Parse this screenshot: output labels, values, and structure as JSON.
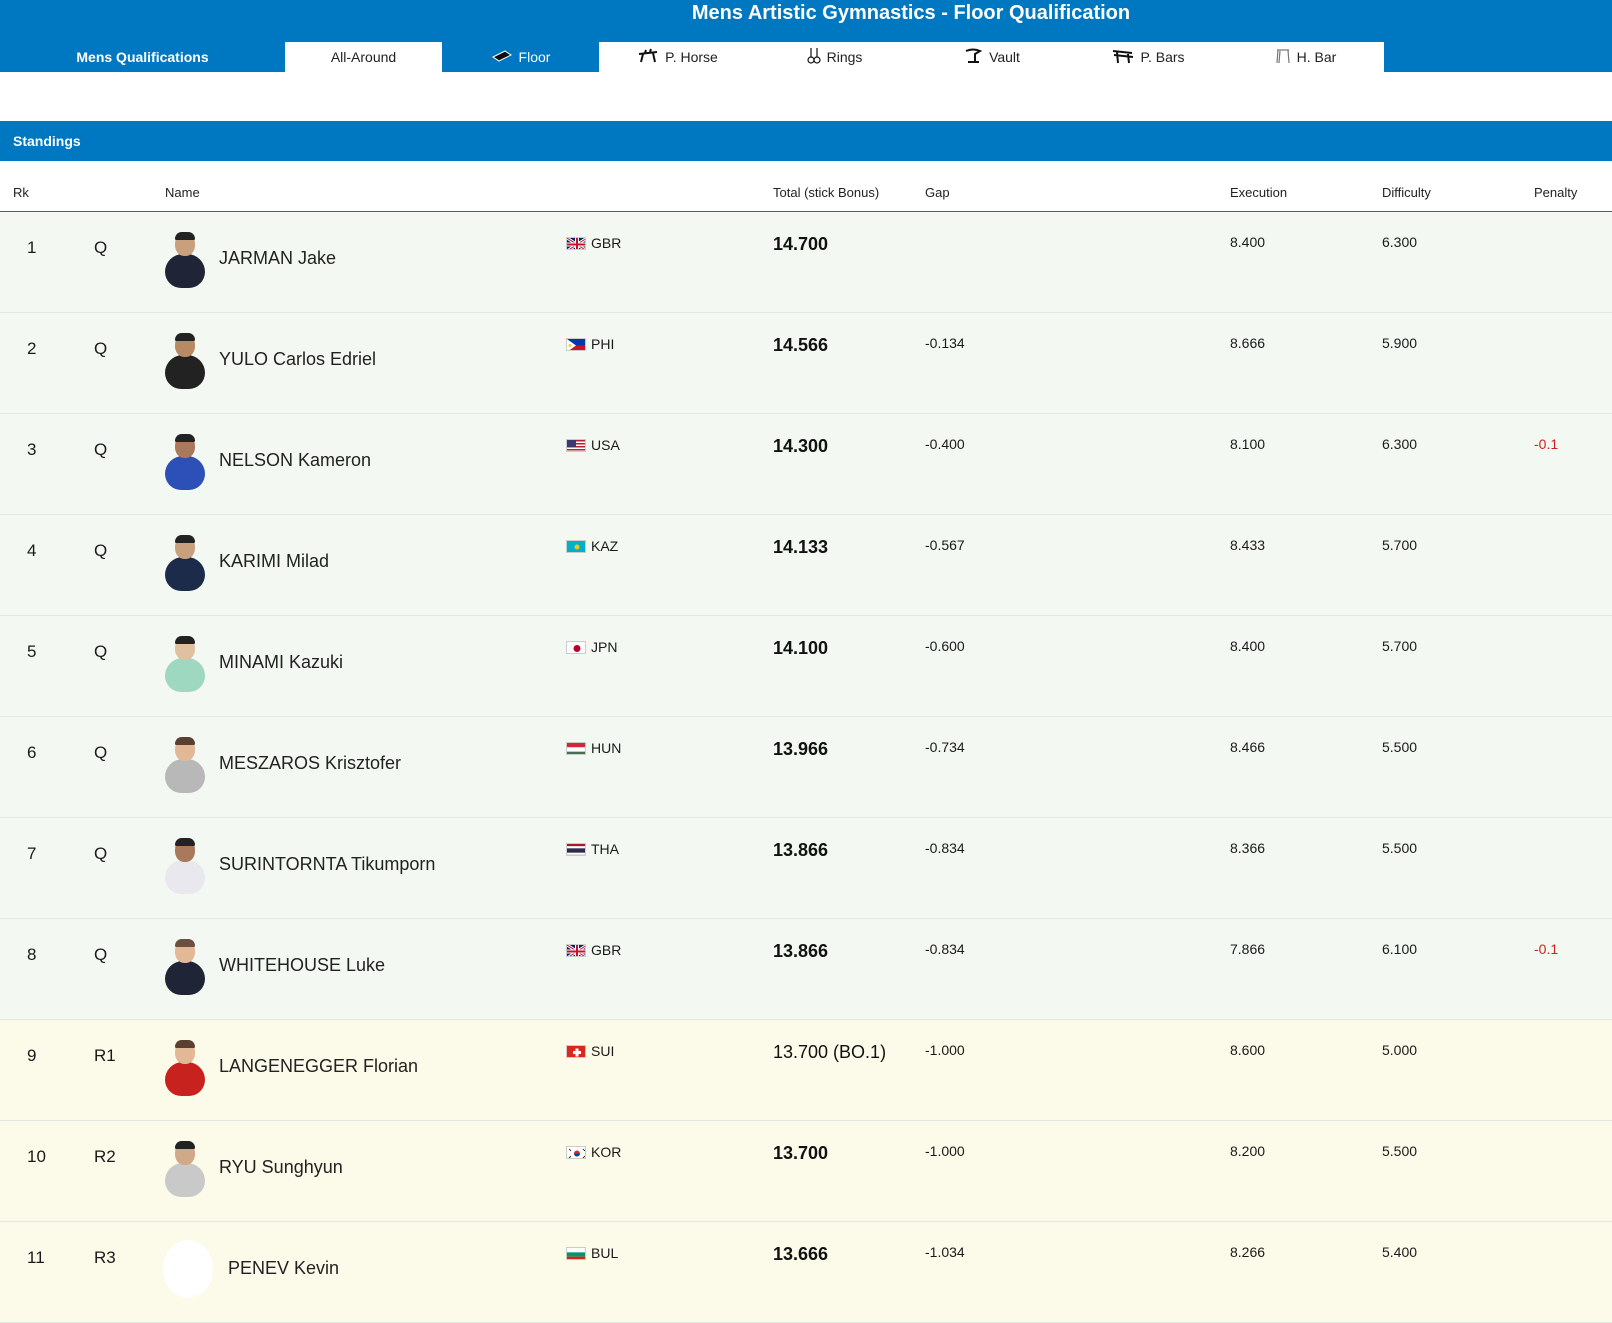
{
  "page_title": "Mens Artistic Gymnastics - Floor Qualification",
  "tabs": {
    "mens": "Mens Qualifications",
    "all_around": "All-Around",
    "floor": "Floor",
    "pommel": "P. Horse",
    "rings": "Rings",
    "vault": "Vault",
    "pbars": "P. Bars",
    "hbar": "H. Bar"
  },
  "section_title": "Standings",
  "columns": {
    "rk": "Rk",
    "name": "Name",
    "total": "Total (stick Bonus)",
    "gap": "Gap",
    "execution": "Execution",
    "difficulty": "Difficulty",
    "penalty": "Penalty"
  },
  "rows": [
    {
      "rk": "1",
      "status": "Q",
      "name": "JARMAN Jake",
      "noc": "GBR",
      "total": "14.700",
      "gap": "",
      "execution": "8.400",
      "difficulty": "6.300",
      "penalty": ""
    },
    {
      "rk": "2",
      "status": "Q",
      "name": "YULO Carlos Edriel",
      "noc": "PHI",
      "total": "14.566",
      "gap": "-0.134",
      "execution": "8.666",
      "difficulty": "5.900",
      "penalty": ""
    },
    {
      "rk": "3",
      "status": "Q",
      "name": "NELSON Kameron",
      "noc": "USA",
      "total": "14.300",
      "gap": "-0.400",
      "execution": "8.100",
      "difficulty": "6.300",
      "penalty": "-0.1"
    },
    {
      "rk": "4",
      "status": "Q",
      "name": "KARIMI Milad",
      "noc": "KAZ",
      "total": "14.133",
      "gap": "-0.567",
      "execution": "8.433",
      "difficulty": "5.700",
      "penalty": ""
    },
    {
      "rk": "5",
      "status": "Q",
      "name": "MINAMI Kazuki",
      "noc": "JPN",
      "total": "14.100",
      "gap": "-0.600",
      "execution": "8.400",
      "difficulty": "5.700",
      "penalty": ""
    },
    {
      "rk": "6",
      "status": "Q",
      "name": "MESZAROS Krisztofer",
      "noc": "HUN",
      "total": "13.966",
      "gap": "-0.734",
      "execution": "8.466",
      "difficulty": "5.500",
      "penalty": ""
    },
    {
      "rk": "7",
      "status": "Q",
      "name": "SURINTORNTA Tikumporn",
      "noc": "THA",
      "total": "13.866",
      "gap": "-0.834",
      "execution": "8.366",
      "difficulty": "5.500",
      "penalty": ""
    },
    {
      "rk": "8",
      "status": "Q",
      "name": "WHITEHOUSE Luke",
      "noc": "GBR",
      "total": "13.866",
      "gap": "-0.834",
      "execution": "7.866",
      "difficulty": "6.100",
      "penalty": "-0.1"
    },
    {
      "rk": "9",
      "status": "R1",
      "name": "LANGENEGGER Florian",
      "noc": "SUI",
      "total": "13.700 (BO.1)",
      "gap": "-1.000",
      "execution": "8.600",
      "difficulty": "5.000",
      "penalty": ""
    },
    {
      "rk": "10",
      "status": "R2",
      "name": "RYU Sunghyun",
      "noc": "KOR",
      "total": "13.700",
      "gap": "-1.000",
      "execution": "8.200",
      "difficulty": "5.500",
      "penalty": ""
    },
    {
      "rk": "11",
      "status": "R3",
      "name": "PENEV Kevin",
      "noc": "BUL",
      "total": "13.666",
      "gap": "-1.034",
      "execution": "8.266",
      "difficulty": "5.400",
      "penalty": ""
    }
  ],
  "colors": {
    "brand_blue": "#0077c1",
    "qualified_row_bg": "#f3f9f2",
    "reserve_row_bg": "#fcfae9",
    "penalty_red": "#d21f1f"
  }
}
